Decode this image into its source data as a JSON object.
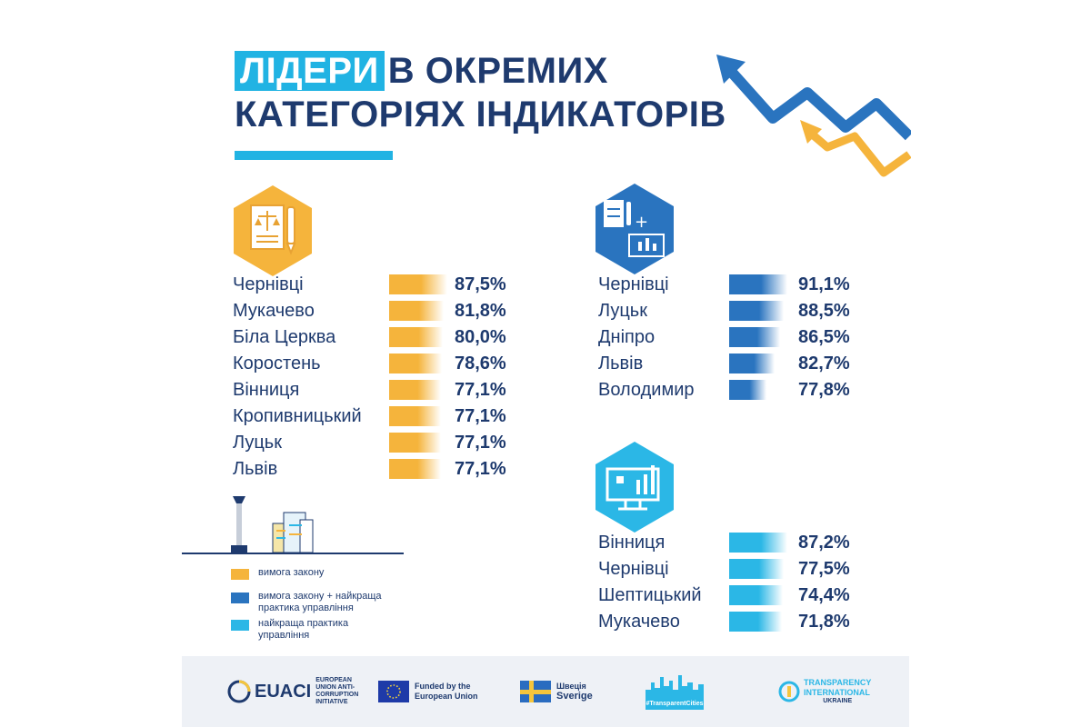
{
  "title": {
    "highlight": "ЛІДЕРИ",
    "line1_rest": "В ОКРЕМИХ",
    "line2": "КАТЕГОРІЯХ ІНДИКАТОРІВ"
  },
  "colors": {
    "orange": "#f5b43c",
    "dark_blue": "#2a74bf",
    "light_blue": "#2bb7e6",
    "navy": "#1e3a6e"
  },
  "icons": {
    "law": "document-scales-pen-icon",
    "law_plus_practice": "document-plus-monitor-icon",
    "practice": "monitor-chart-icon"
  },
  "chart_data": [
    {
      "type": "bar",
      "series_color": "#f5b43c",
      "categories": [
        "Чернівці",
        "Мукачево",
        "Біла Церква",
        "Коростень",
        "Вінниця",
        "Кропивницький",
        "Луцьк",
        "Львів"
      ],
      "values": [
        87.5,
        81.8,
        80.0,
        78.6,
        77.1,
        77.1,
        77.1,
        77.1
      ],
      "labels": [
        "87,5%",
        "81,8%",
        "80,0%",
        "78,6%",
        "77,1%",
        "77,1%",
        "77,1%",
        "77,1%"
      ]
    },
    {
      "type": "bar",
      "series_color": "#2a74bf",
      "categories": [
        "Чернівці",
        "Луцьк",
        "Дніпро",
        "Львів",
        "Володимир"
      ],
      "values": [
        91.1,
        88.5,
        86.5,
        82.7,
        77.8
      ],
      "labels": [
        "91,1%",
        "88,5%",
        "86,5%",
        "82,7%",
        "77,8%"
      ]
    },
    {
      "type": "bar",
      "series_color": "#2bb7e6",
      "categories": [
        "Вінниця",
        "Чернівці",
        "Шептицький",
        "Мукачево"
      ],
      "values": [
        87.2,
        77.5,
        74.4,
        71.8
      ],
      "labels": [
        "87,2%",
        "77,5%",
        "74,4%",
        "71,8%"
      ]
    }
  ],
  "legend": [
    {
      "label": "вимога закону",
      "color": "#f5b43c"
    },
    {
      "label": "вимога закону + найкраща практика управління",
      "color": "#2a74bf"
    },
    {
      "label": "найкраща практика управління",
      "color": "#2bb7e6"
    }
  ],
  "footer": {
    "euaci": {
      "name": "EUACI",
      "sub": "EUROPEAN UNION ANTI-CORRUPTION INITIATIVE"
    },
    "eu": {
      "text": "Funded by the European Union"
    },
    "sweden": {
      "line1": "Швеція",
      "line2": "Sverige"
    },
    "cities": {
      "tag": "#TransparentCities"
    },
    "ti": {
      "line1": "TRANSPARENCY",
      "line2": "INTERNATIONAL",
      "line3": "UKRAINE"
    }
  }
}
